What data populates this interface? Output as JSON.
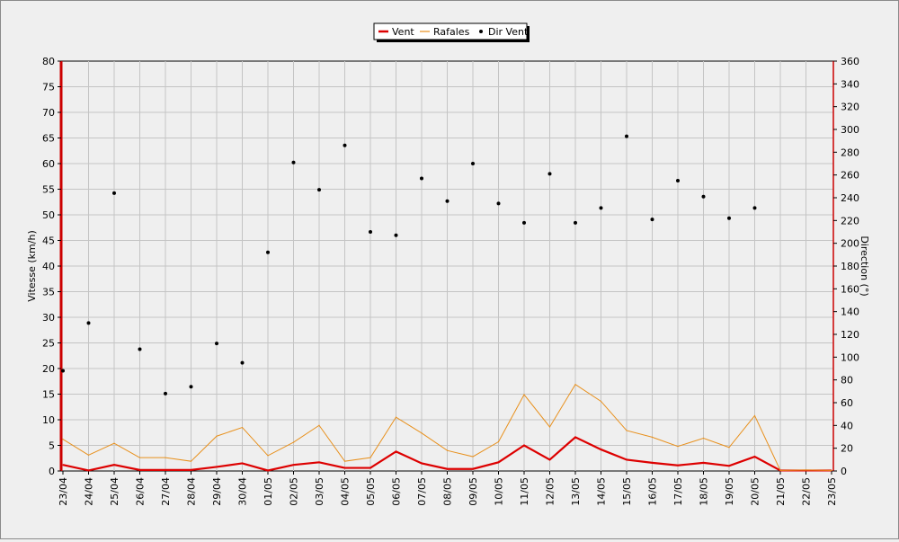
{
  "chart_data": {
    "type": "line",
    "categories": [
      "23/04",
      "24/04",
      "25/04",
      "26/04",
      "27/04",
      "28/04",
      "29/04",
      "30/04",
      "01/05",
      "02/05",
      "03/05",
      "04/05",
      "05/05",
      "06/05",
      "07/05",
      "08/05",
      "09/05",
      "10/05",
      "11/05",
      "12/05",
      "13/05",
      "14/05",
      "15/05",
      "16/05",
      "17/05",
      "18/05",
      "19/05",
      "20/05",
      "21/05",
      "22/05",
      "23/05"
    ],
    "series": [
      {
        "name": "Vent",
        "axis": "left",
        "kind": "line",
        "color": "#dd0000",
        "values": [
          1.2,
          0.1,
          1.2,
          0.2,
          0.2,
          0.2,
          0.8,
          1.5,
          0.1,
          1.2,
          1.7,
          0.6,
          0.6,
          3.8,
          1.5,
          0.4,
          0.4,
          1.7,
          5.0,
          2.2,
          6.6,
          4.2,
          2.2,
          1.6,
          1.1,
          1.6,
          1.0,
          2.8,
          0.1,
          0.1,
          0.1
        ]
      },
      {
        "name": "Rafales",
        "axis": "left",
        "kind": "line",
        "color": "#e8901c",
        "values": [
          6.2,
          3.1,
          5.4,
          2.6,
          2.6,
          1.9,
          6.8,
          8.5,
          3.0,
          5.6,
          8.9,
          1.9,
          2.6,
          10.5,
          7.4,
          4.0,
          2.8,
          5.7,
          14.9,
          8.6,
          16.9,
          13.6,
          7.9,
          6.6,
          4.8,
          6.4,
          4.6,
          10.8,
          0.1,
          0.2,
          0.1
        ]
      },
      {
        "name": "Dir Vent",
        "axis": "right",
        "kind": "scatter",
        "color": "#000000",
        "values": [
          88,
          130,
          244,
          107,
          68,
          74,
          112,
          95,
          192,
          271,
          247,
          286,
          210,
          207,
          257,
          237,
          270,
          235,
          218,
          261,
          218,
          231,
          294,
          221,
          255,
          241,
          222,
          231,
          null,
          null,
          null
        ]
      }
    ],
    "ylabel": "Vitesse (km/h)",
    "y2label": "Direction (°)",
    "ylim": [
      0,
      80
    ],
    "y2lim": [
      0,
      360
    ],
    "yticks": [
      0,
      5,
      10,
      15,
      20,
      25,
      30,
      35,
      40,
      45,
      50,
      55,
      60,
      65,
      70,
      75,
      80
    ],
    "y2ticks": [
      0,
      20,
      40,
      60,
      80,
      100,
      120,
      140,
      160,
      180,
      200,
      220,
      240,
      260,
      280,
      300,
      320,
      340,
      360
    ],
    "grid": true,
    "legend_position": "top-center"
  }
}
